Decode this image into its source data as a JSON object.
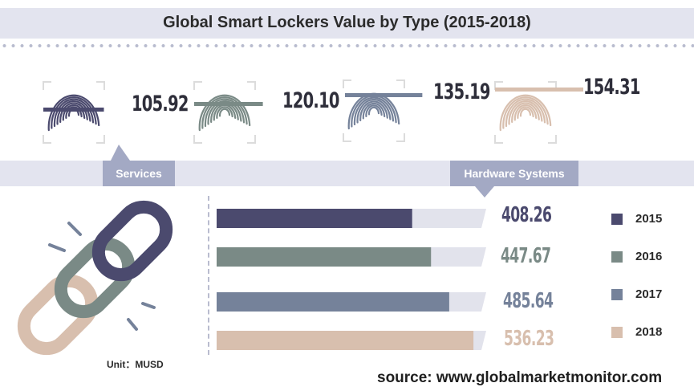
{
  "title": "Global Smart Lockers Value by Type (2015-2018)",
  "colors": {
    "2015": "#4b4a6e",
    "2016": "#7a8a86",
    "2017": "#75829a",
    "2018": "#d8bfae",
    "track": "#e2e3ec",
    "band": "#e3e4ef",
    "tag": "#a3a9c4"
  },
  "icons": [
    "fingerprint-icon",
    "chain-link-icon"
  ],
  "chart_data": [
    {
      "type": "bar",
      "segment": "Services",
      "categories": [
        "2015",
        "2016",
        "2017",
        "2018"
      ],
      "values": [
        105.92,
        120.1,
        135.19,
        154.31
      ],
      "labels": [
        "105.92",
        "120.10",
        "135.19",
        "154.31"
      ]
    },
    {
      "type": "bar",
      "orientation": "horizontal",
      "segment": "Hardware Systems",
      "categories": [
        "2015",
        "2016",
        "2017",
        "2018"
      ],
      "values": [
        408.26,
        447.67,
        485.64,
        536.23
      ],
      "labels": [
        "408.26",
        "447.67",
        "485.64",
        "536.23"
      ],
      "legend_position": "right"
    }
  ],
  "legend": [
    "2015",
    "2016",
    "2017",
    "2018"
  ],
  "unit_label": "Unit：MUSD",
  "source": "source: www.globalmarketmonitor.com"
}
